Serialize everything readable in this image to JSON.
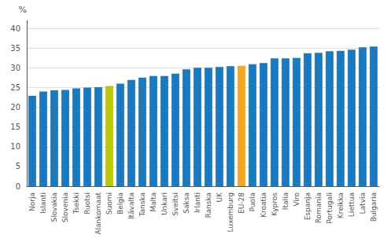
{
  "chart_data": {
    "type": "bar",
    "ylabel": "%",
    "categories": [
      "Norja",
      "Islanti",
      "Slovakia",
      "Slovenia",
      "Tsekki",
      "Ruotsi",
      "Alankomaat",
      "Suomi",
      "Belgia",
      "Itävalta",
      "Tanska",
      "Malta",
      "Unkari",
      "Sveitsi",
      "Saksa",
      "Irlanti",
      "Ranska",
      "UK",
      "Luxemburg",
      "EU-28",
      "Puola",
      "Kroatia",
      "Kypros",
      "Italia",
      "Viro",
      "Espanja",
      "Romania",
      "Portugali",
      "Kreikka",
      "Liettua",
      "Latvia",
      "Bulgaria"
    ],
    "values": [
      22.9,
      24.0,
      24.3,
      24.4,
      24.8,
      25.0,
      25.1,
      25.4,
      26.0,
      26.9,
      27.5,
      27.9,
      27.9,
      28.5,
      29.6,
      30.0,
      30.0,
      30.2,
      30.4,
      30.5,
      30.9,
      31.2,
      32.4,
      32.4,
      32.5,
      33.7,
      33.8,
      34.2,
      34.3,
      34.6,
      35.2,
      35.4
    ],
    "colors": [
      "#1a7abf",
      "#1a7abf",
      "#1a7abf",
      "#1a7abf",
      "#1a7abf",
      "#1a7abf",
      "#1a7abf",
      "#b8cb00",
      "#1a7abf",
      "#1a7abf",
      "#1a7abf",
      "#1a7abf",
      "#1a7abf",
      "#1a7abf",
      "#1a7abf",
      "#1a7abf",
      "#1a7abf",
      "#1a7abf",
      "#1a7abf",
      "#f5a623",
      "#1a7abf",
      "#1a7abf",
      "#1a7abf",
      "#1a7abf",
      "#1a7abf",
      "#1a7abf",
      "#1a7abf",
      "#1a7abf",
      "#1a7abf",
      "#1a7abf",
      "#1a7abf",
      "#1a7abf"
    ],
    "ylim": [
      0,
      42
    ],
    "yticks": [
      0,
      5,
      10,
      15,
      20,
      25,
      30,
      35,
      40
    ],
    "grid": true
  }
}
